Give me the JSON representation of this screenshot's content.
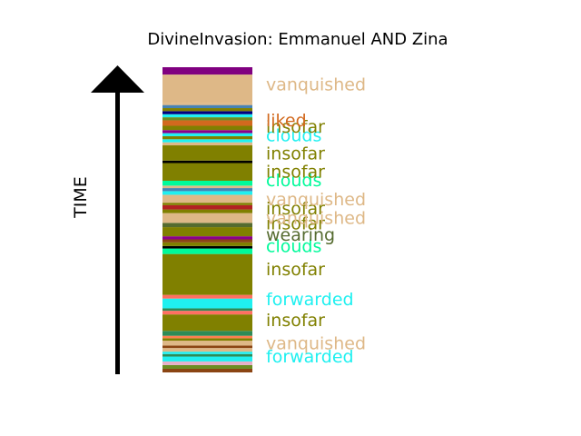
{
  "chart_data": {
    "type": "stacked-timeline",
    "title": "DivineInvasion: Emmanuel AND Zina",
    "ylabel": "TIME",
    "ylim": [
      0,
      100
    ],
    "segments": [
      {
        "start": 0.0,
        "end": 1.2,
        "color": "#8b4513"
      },
      {
        "start": 1.2,
        "end": 2.4,
        "color": "#6b8e23"
      },
      {
        "start": 2.4,
        "end": 3.6,
        "color": "#e6b0c8"
      },
      {
        "start": 3.6,
        "end": 5.2,
        "color": "#1ff0f0"
      },
      {
        "start": 5.2,
        "end": 6.0,
        "color": "#2e8b57"
      },
      {
        "start": 6.0,
        "end": 6.8,
        "color": "#1ff0f0"
      },
      {
        "start": 6.8,
        "end": 8.0,
        "color": "#deb887"
      },
      {
        "start": 8.0,
        "end": 8.8,
        "color": "#8b4513"
      },
      {
        "start": 8.8,
        "end": 10.4,
        "color": "#deb887"
      },
      {
        "start": 10.4,
        "end": 11.2,
        "color": "#808000"
      },
      {
        "start": 11.2,
        "end": 12.0,
        "color": "#ff7f50"
      },
      {
        "start": 12.0,
        "end": 13.6,
        "color": "#2e8b57"
      },
      {
        "start": 13.6,
        "end": 19.0,
        "color": "#808000"
      },
      {
        "start": 19.0,
        "end": 20.2,
        "color": "#ff6f61"
      },
      {
        "start": 20.2,
        "end": 21.0,
        "color": "#2e8b57"
      },
      {
        "start": 21.0,
        "end": 24.2,
        "color": "#1ff0f0"
      },
      {
        "start": 24.2,
        "end": 25.4,
        "color": "#ff6f61"
      },
      {
        "start": 25.4,
        "end": 38.8,
        "color": "#808000"
      },
      {
        "start": 38.8,
        "end": 40.6,
        "color": "#00fa9a"
      },
      {
        "start": 40.6,
        "end": 41.4,
        "color": "#000000"
      },
      {
        "start": 41.4,
        "end": 42.6,
        "color": "#808000"
      },
      {
        "start": 42.6,
        "end": 43.6,
        "color": "#8b4513"
      },
      {
        "start": 43.6,
        "end": 44.6,
        "color": "#8b008b"
      },
      {
        "start": 44.6,
        "end": 47.6,
        "color": "#808000"
      },
      {
        "start": 47.6,
        "end": 49.0,
        "color": "#556b2f"
      },
      {
        "start": 49.0,
        "end": 52.2,
        "color": "#deb887"
      },
      {
        "start": 52.2,
        "end": 53.4,
        "color": "#808000"
      },
      {
        "start": 53.4,
        "end": 54.8,
        "color": "#b22222"
      },
      {
        "start": 54.8,
        "end": 55.6,
        "color": "#808000"
      },
      {
        "start": 55.6,
        "end": 58.2,
        "color": "#deb887"
      },
      {
        "start": 58.2,
        "end": 59.4,
        "color": "#1ff0f0"
      },
      {
        "start": 59.4,
        "end": 60.4,
        "color": "#4682b4"
      },
      {
        "start": 60.4,
        "end": 61.2,
        "color": "#deb887"
      },
      {
        "start": 61.2,
        "end": 62.8,
        "color": "#00fa9a"
      },
      {
        "start": 62.8,
        "end": 68.6,
        "color": "#808000"
      },
      {
        "start": 68.6,
        "end": 69.4,
        "color": "#000000"
      },
      {
        "start": 69.4,
        "end": 74.4,
        "color": "#808000"
      },
      {
        "start": 74.4,
        "end": 75.4,
        "color": "#deb887"
      },
      {
        "start": 75.4,
        "end": 76.4,
        "color": "#1ff0f0"
      },
      {
        "start": 76.4,
        "end": 77.4,
        "color": "#808000"
      },
      {
        "start": 77.4,
        "end": 78.4,
        "color": "#1ff0f0"
      },
      {
        "start": 78.4,
        "end": 79.4,
        "color": "#8b008b"
      },
      {
        "start": 79.4,
        "end": 80.8,
        "color": "#808000"
      },
      {
        "start": 80.8,
        "end": 82.6,
        "color": "#d2691e"
      },
      {
        "start": 82.6,
        "end": 83.6,
        "color": "#6b8e23"
      },
      {
        "start": 83.6,
        "end": 84.6,
        "color": "#1ff0f0"
      },
      {
        "start": 84.6,
        "end": 85.6,
        "color": "#000080"
      },
      {
        "start": 85.6,
        "end": 86.6,
        "color": "#808000"
      },
      {
        "start": 86.6,
        "end": 87.6,
        "color": "#4682b4"
      },
      {
        "start": 87.6,
        "end": 88.2,
        "color": "#deb887"
      },
      {
        "start": 88.2,
        "end": 97.6,
        "color": "#deb887"
      },
      {
        "start": 97.6,
        "end": 100.0,
        "color": "#800080"
      }
    ],
    "labels": [
      {
        "text": "forwarded",
        "y": 5.0,
        "color": "#1ff0f0"
      },
      {
        "text": "vanquished",
        "y": 9.4,
        "color": "#deb887"
      },
      {
        "text": "insofar",
        "y": 17.0,
        "color": "#808000"
      },
      {
        "text": "forwarded",
        "y": 23.8,
        "color": "#1ff0f0"
      },
      {
        "text": "insofar",
        "y": 33.6,
        "color": "#808000"
      },
      {
        "text": "clouds",
        "y": 41.2,
        "color": "#00fa9a"
      },
      {
        "text": "wearing",
        "y": 45.0,
        "color": "#556b2f"
      },
      {
        "text": "insofar",
        "y": 48.6,
        "color": "#808000"
      },
      {
        "text": "vanquished",
        "y": 50.4,
        "color": "#deb887"
      },
      {
        "text": "insofar",
        "y": 53.6,
        "color": "#808000"
      },
      {
        "text": "vanquished",
        "y": 56.6,
        "color": "#deb887"
      },
      {
        "text": "clouds",
        "y": 62.8,
        "color": "#00fa9a"
      },
      {
        "text": "insofar",
        "y": 65.6,
        "color": "#808000"
      },
      {
        "text": "insofar",
        "y": 71.6,
        "color": "#808000"
      },
      {
        "text": "clouds",
        "y": 77.6,
        "color": "#1ff0f0"
      },
      {
        "text": "insofar",
        "y": 80.4,
        "color": "#808000"
      },
      {
        "text": "liked",
        "y": 82.4,
        "color": "#d2691e"
      },
      {
        "text": "vanquished",
        "y": 94.2,
        "color": "#deb887"
      }
    ]
  }
}
